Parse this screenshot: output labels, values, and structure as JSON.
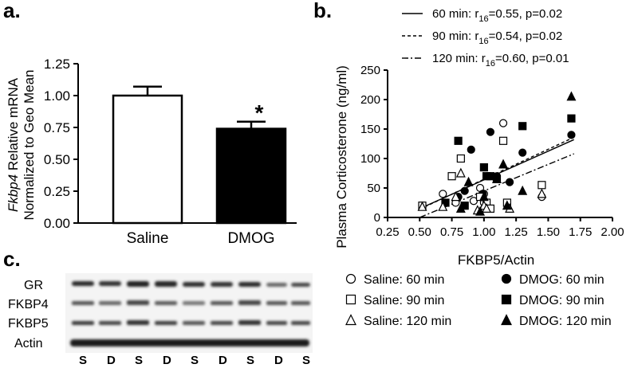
{
  "panels": {
    "a": "a.",
    "b": "b.",
    "c": "c."
  },
  "chart_data": [
    {
      "type": "bar",
      "panel": "a.",
      "categories": [
        "Saline",
        "DMOG"
      ],
      "values": [
        1.0,
        0.74
      ],
      "errors": [
        0.07,
        0.055
      ],
      "colors": [
        "#ffffff",
        "#000000"
      ],
      "significance": [
        "",
        "*"
      ],
      "ylabel_italic": "Fkbp4",
      "ylabel_line1": " Relative mRNA",
      "ylabel_line2": "Normalized to Geo Mean",
      "ylim": [
        0,
        1.25
      ],
      "yticks": [
        "0.00",
        "0.25",
        "0.50",
        "0.75",
        "1.00",
        "1.25"
      ]
    },
    {
      "type": "scatter",
      "panel": "b.",
      "xlabel": "FKBP5/Actin",
      "ylabel": "Plasma Corticosterone (ng/ml)",
      "xlim": [
        0.25,
        2.0
      ],
      "ylim": [
        0,
        250
      ],
      "xticks": [
        "0.25",
        "0.50",
        "0.75",
        "1.00",
        "1.25",
        "1.50",
        "1.75",
        "2.00"
      ],
      "yticks": [
        "0",
        "50",
        "100",
        "150",
        "200",
        "250"
      ],
      "fits": [
        {
          "label_pre": "60 min: r",
          "label_sub": "16",
          "label_post": "=0.55, p=0.02",
          "style": "solid",
          "x": [
            0.5,
            1.7
          ],
          "y": [
            15,
            132
          ]
        },
        {
          "label_pre": "90 min: r",
          "label_sub": "16",
          "label_post": "=0.54, p=0.02",
          "style": "dashed",
          "x": [
            0.5,
            1.7
          ],
          "y": [
            14,
            136
          ]
        },
        {
          "label_pre": "120 min: r",
          "label_sub": "16",
          "label_post": "=0.60, p=0.01",
          "style": "dashdot",
          "x": [
            0.5,
            1.7
          ],
          "y": [
            0,
            108
          ]
        }
      ],
      "series": [
        {
          "name": "Saline: 60 min",
          "marker": "circle",
          "filled": false,
          "points": [
            [
              0.52,
              20
            ],
            [
              0.68,
              40
            ],
            [
              0.78,
              25
            ],
            [
              0.92,
              28
            ],
            [
              0.97,
              50
            ],
            [
              1.0,
              40
            ],
            [
              1.0,
              25
            ],
            [
              1.15,
              160
            ],
            [
              1.45,
              35
            ]
          ]
        },
        {
          "name": "DMOG: 60 min",
          "marker": "circle",
          "filled": true,
          "points": [
            [
              0.8,
              35
            ],
            [
              0.85,
              45
            ],
            [
              0.9,
              115
            ],
            [
              0.99,
              40
            ],
            [
              1.05,
              145
            ],
            [
              1.1,
              70
            ],
            [
              1.2,
              60
            ],
            [
              1.3,
              110
            ],
            [
              1.68,
              140
            ]
          ]
        },
        {
          "name": "Saline: 90 min",
          "marker": "square",
          "filled": false,
          "points": [
            [
              0.52,
              20
            ],
            [
              0.75,
              70
            ],
            [
              0.82,
              100
            ],
            [
              0.97,
              35
            ],
            [
              1.02,
              25
            ],
            [
              1.05,
              15
            ],
            [
              1.15,
              130
            ],
            [
              1.18,
              25
            ],
            [
              1.45,
              55
            ]
          ]
        },
        {
          "name": "DMOG: 90 min",
          "marker": "square",
          "filled": true,
          "points": [
            [
              0.7,
              25
            ],
            [
              0.8,
              130
            ],
            [
              0.85,
              20
            ],
            [
              1.0,
              85
            ],
            [
              1.02,
              70
            ],
            [
              1.05,
              70
            ],
            [
              1.1,
              65
            ],
            [
              1.3,
              155
            ],
            [
              1.68,
              168
            ]
          ]
        },
        {
          "name": "Saline: 120 min",
          "marker": "triangle",
          "filled": false,
          "points": [
            [
              0.52,
              18
            ],
            [
              0.68,
              18
            ],
            [
              0.78,
              35
            ],
            [
              0.82,
              75
            ],
            [
              0.95,
              12
            ],
            [
              1.0,
              20
            ],
            [
              1.02,
              15
            ],
            [
              1.2,
              15
            ],
            [
              1.45,
              40
            ]
          ]
        },
        {
          "name": "DMOG: 120 min",
          "marker": "triangle",
          "filled": true,
          "points": [
            [
              0.82,
              15
            ],
            [
              0.88,
              60
            ],
            [
              0.97,
              10
            ],
            [
              1.0,
              35
            ],
            [
              1.1,
              65
            ],
            [
              1.15,
              90
            ],
            [
              1.18,
              20
            ],
            [
              1.3,
              45
            ],
            [
              1.68,
              205
            ]
          ]
        }
      ]
    }
  ],
  "blot": {
    "rows": [
      "GR",
      "FKBP4",
      "FKBP5",
      "Actin"
    ],
    "lanes": [
      "S",
      "D",
      "S",
      "D",
      "S",
      "D",
      "S",
      "D",
      "S"
    ]
  }
}
